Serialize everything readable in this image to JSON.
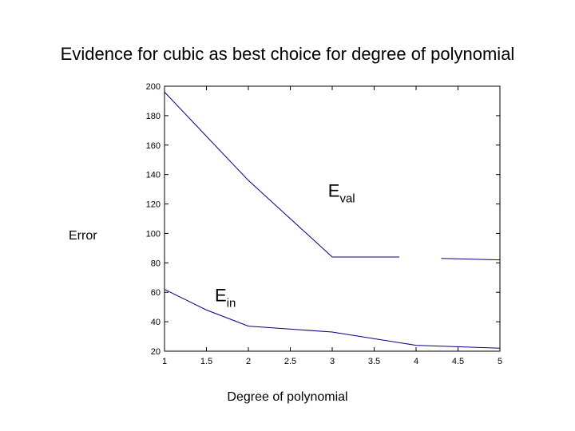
{
  "chart_data": {
    "type": "line",
    "title": "Evidence for cubic as best choice for degree of polynomial",
    "xlabel": "Degree of polynomial",
    "ylabel": "Error",
    "xlim": [
      1,
      5
    ],
    "ylim": [
      20,
      200
    ],
    "xticks": [
      "1",
      "1.5",
      "2",
      "2.5",
      "3",
      "3.5",
      "4",
      "4.5",
      "5"
    ],
    "yticks": [
      "20",
      "40",
      "60",
      "80",
      "100",
      "120",
      "140",
      "160",
      "180",
      "200"
    ],
    "grid": false,
    "series": [
      {
        "id": "eval",
        "color": "#00007f",
        "segments": [
          {
            "x": [
              1,
              2,
              3,
              3.8
            ],
            "y": [
              196,
              136,
              84,
              84
            ]
          },
          {
            "x": [
              4.3,
              5
            ],
            "y": [
              83,
              82
            ]
          }
        ]
      },
      {
        "id": "ein",
        "color": "#00007f",
        "segments": [
          {
            "x": [
              1,
              1.5,
              2,
              3,
              4,
              5
            ],
            "y": [
              62,
              48,
              37,
              33,
              24,
              22
            ]
          }
        ]
      }
    ],
    "annotations": [
      {
        "id": "eval-label",
        "main": "E",
        "sub": "val",
        "x": 2.95,
        "y": 125
      },
      {
        "id": "ein-label",
        "main": "E",
        "sub": "in",
        "x": 1.6,
        "y": 54
      }
    ]
  }
}
